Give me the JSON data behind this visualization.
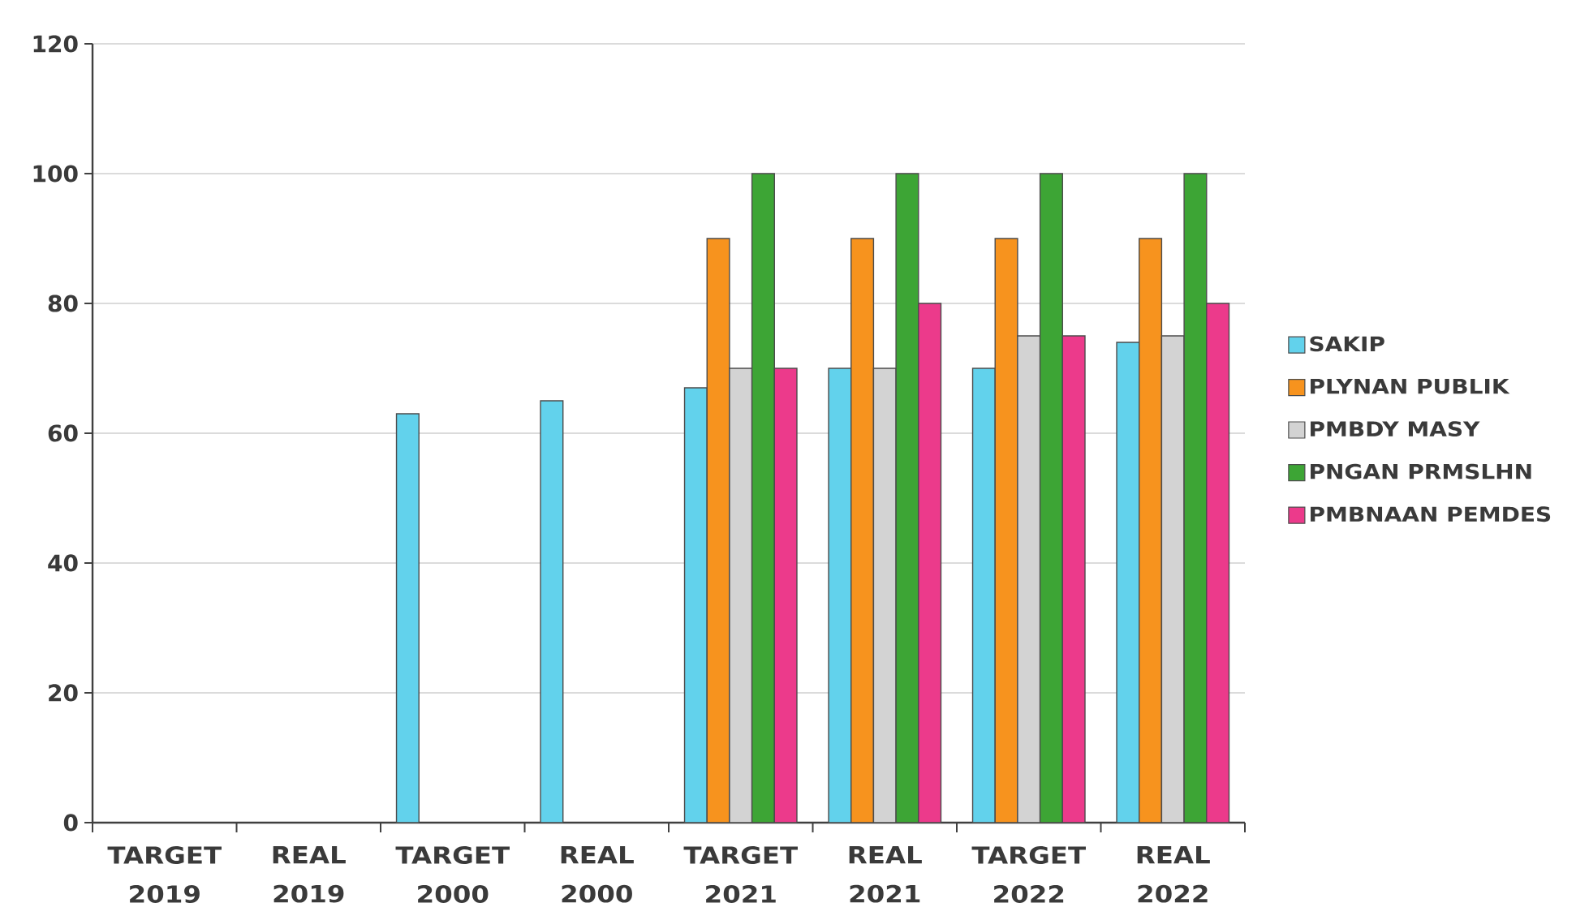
{
  "chart_data": {
    "type": "bar",
    "categories": [
      "TARGET 2019",
      "REAL 2019",
      "TARGET 2000",
      "REAL 2000",
      "TARGET 2021",
      "REAL 2021",
      "TARGET 2022",
      "REAL 2022"
    ],
    "series": [
      {
        "name": "SAKIP",
        "color": "#62d2ec",
        "values": [
          null,
          null,
          63,
          65,
          67,
          70,
          70,
          74
        ]
      },
      {
        "name": "PLYNAN PUBLIK",
        "color": "#f7931e",
        "values": [
          null,
          null,
          null,
          null,
          90,
          90,
          90,
          90
        ]
      },
      {
        "name": "PMBDY MASY",
        "color": "#d3d3d3",
        "values": [
          null,
          null,
          null,
          null,
          70,
          70,
          75,
          75
        ]
      },
      {
        "name": "PNGAN PRMSLHN",
        "color": "#3da535",
        "values": [
          null,
          null,
          null,
          null,
          100,
          100,
          100,
          100
        ]
      },
      {
        "name": "PMBNAAN PEMDES",
        "color": "#ec3a8b",
        "values": [
          null,
          null,
          null,
          null,
          70,
          80,
          75,
          80
        ]
      }
    ],
    "ylim": [
      0,
      120
    ],
    "yticks": [
      0,
      20,
      40,
      60,
      80,
      100,
      120
    ],
    "grid": "y",
    "legend": "right"
  }
}
